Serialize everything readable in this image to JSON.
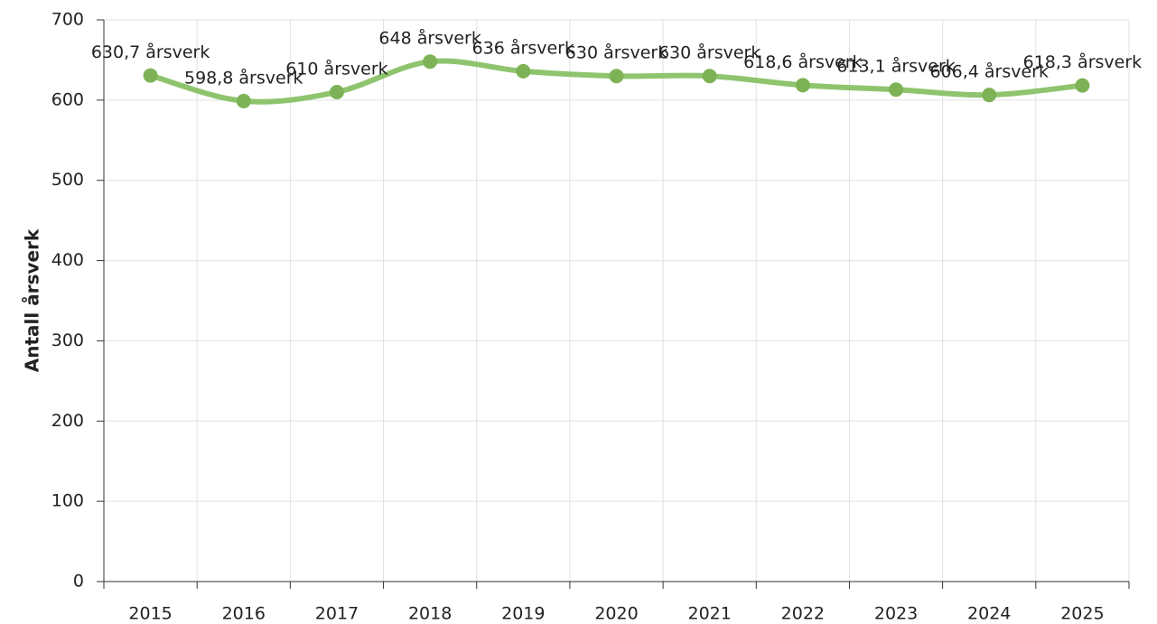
{
  "chart_data": {
    "type": "line",
    "y_label": "Antall årsverk",
    "categories": [
      "2015",
      "2016",
      "2017",
      "2018",
      "2019",
      "2020",
      "2021",
      "2022",
      "2023",
      "2024",
      "2025"
    ],
    "series": [
      {
        "name": "Antall årsverk",
        "color": "#8fc46e",
        "marker_color": "#7db356",
        "values": [
          630.7,
          598.8,
          610,
          648,
          636,
          630,
          630,
          618.6,
          613.1,
          606.4,
          618.3
        ],
        "value_labels": [
          "630,7 årsverk",
          "598,8 årsverk",
          "610 årsverk",
          "648 årsverk",
          "636 årsverk",
          "630 årsverk",
          "630 årsverk",
          "618,6 årsverk",
          "613,1 årsverk",
          "606,4 årsverk",
          "618,3 årsverk"
        ]
      }
    ],
    "ylim": [
      0,
      700
    ],
    "yticks": [
      0,
      100,
      200,
      300,
      400,
      500,
      600,
      700
    ],
    "grid": true,
    "smooth": true
  }
}
